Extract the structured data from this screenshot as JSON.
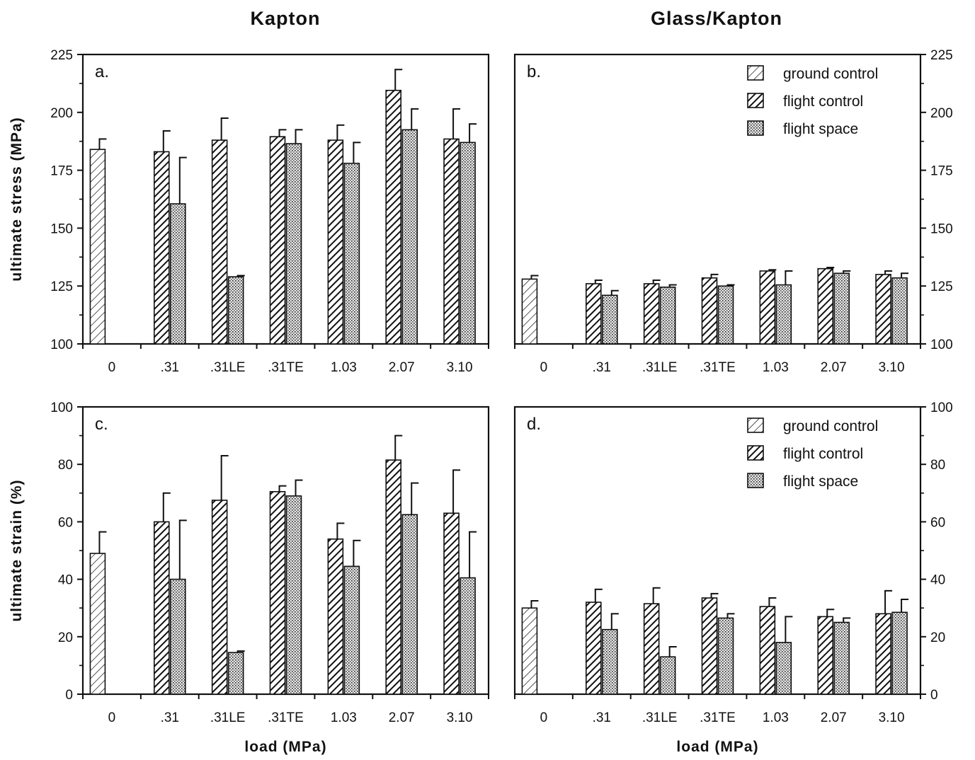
{
  "figure": {
    "col_titles": [
      "Kapton",
      "Glass/Kapton"
    ],
    "colors": {
      "ink": "#111111",
      "background": "#ffffff"
    },
    "patterns": {
      "ground control": "light-diagonal-hatch",
      "flight control": "dark-diagonal-hatch",
      "flight space": "stipple"
    }
  },
  "chart_data": [
    {
      "type": "bar",
      "panel": "a.",
      "column_title": "Kapton",
      "ylabel": "ultimate stress (MPa)",
      "xlabel": "",
      "ylim": [
        100,
        225
      ],
      "yticks": [
        100,
        125,
        150,
        175,
        200,
        225
      ],
      "y_axis_side": "left",
      "categories": [
        "0",
        ".31",
        ".31LE",
        ".31TE",
        "1.03",
        "2.07",
        "3.10"
      ],
      "legend": false,
      "series": [
        {
          "name": "ground control",
          "values": [
            184,
            null,
            null,
            null,
            null,
            null,
            null
          ],
          "errors": [
            4.5,
            null,
            null,
            null,
            null,
            null,
            null
          ]
        },
        {
          "name": "flight control",
          "values": [
            null,
            183,
            188,
            189.5,
            188,
            209.5,
            188.5
          ],
          "errors": [
            null,
            9,
            9.5,
            3,
            6.5,
            9,
            13
          ]
        },
        {
          "name": "flight space",
          "values": [
            null,
            160.5,
            129,
            186.5,
            178,
            192.5,
            187
          ],
          "errors": [
            null,
            20,
            0.5,
            6,
            9,
            9,
            8
          ]
        }
      ]
    },
    {
      "type": "bar",
      "panel": "b.",
      "column_title": "Glass/Kapton",
      "ylabel": "",
      "xlabel": "",
      "ylim": [
        100,
        225
      ],
      "yticks": [
        100,
        125,
        150,
        175,
        200,
        225
      ],
      "y_axis_side": "right",
      "categories": [
        "0",
        ".31",
        ".31LE",
        ".31TE",
        "1.03",
        "2.07",
        "3.10"
      ],
      "legend": true,
      "legend_position": "top-right",
      "series": [
        {
          "name": "ground control",
          "values": [
            128,
            null,
            null,
            null,
            null,
            null,
            null
          ],
          "errors": [
            1.5,
            null,
            null,
            null,
            null,
            null,
            null
          ]
        },
        {
          "name": "flight control",
          "values": [
            null,
            126,
            126,
            128.5,
            131.5,
            132.5,
            130
          ],
          "errors": [
            null,
            1.5,
            1.5,
            1.5,
            0.5,
            0.5,
            1.5
          ]
        },
        {
          "name": "flight space",
          "values": [
            null,
            121,
            124.5,
            125,
            125.5,
            130.5,
            128.5
          ],
          "errors": [
            null,
            2,
            1,
            0.5,
            6,
            1,
            2
          ]
        }
      ]
    },
    {
      "type": "bar",
      "panel": "c.",
      "column_title": "Kapton",
      "ylabel": "ultimate strain (%)",
      "xlabel": "load (MPa)",
      "ylim": [
        0,
        100
      ],
      "yticks": [
        0,
        20,
        40,
        60,
        80,
        100
      ],
      "y_axis_side": "left",
      "categories": [
        "0",
        ".31",
        ".31LE",
        ".31TE",
        "1.03",
        "2.07",
        "3.10"
      ],
      "legend": false,
      "series": [
        {
          "name": "ground control",
          "values": [
            49,
            null,
            null,
            null,
            null,
            null,
            null
          ],
          "errors": [
            7.5,
            null,
            null,
            null,
            null,
            null,
            null
          ]
        },
        {
          "name": "flight control",
          "values": [
            null,
            60,
            67.5,
            70.5,
            54,
            81.5,
            63
          ],
          "errors": [
            null,
            10,
            15.5,
            2,
            5.5,
            8.5,
            15
          ]
        },
        {
          "name": "flight space",
          "values": [
            null,
            40,
            14.5,
            69,
            44.5,
            62.5,
            40.5
          ],
          "errors": [
            null,
            20.5,
            0.5,
            5.5,
            9,
            11,
            16
          ]
        }
      ]
    },
    {
      "type": "bar",
      "panel": "d.",
      "column_title": "Glass/Kapton",
      "ylabel": "",
      "xlabel": "load (MPa)",
      "ylim": [
        0,
        100
      ],
      "yticks": [
        0,
        20,
        40,
        60,
        80,
        100
      ],
      "y_axis_side": "right",
      "categories": [
        "0",
        ".31",
        ".31LE",
        ".31TE",
        "1.03",
        "2.07",
        "3.10"
      ],
      "legend": true,
      "legend_position": "top-right",
      "series": [
        {
          "name": "ground control",
          "values": [
            30,
            null,
            null,
            null,
            null,
            null,
            null
          ],
          "errors": [
            2.5,
            null,
            null,
            null,
            null,
            null,
            null
          ]
        },
        {
          "name": "flight control",
          "values": [
            null,
            32,
            31.5,
            33.5,
            30.5,
            27,
            28
          ],
          "errors": [
            null,
            4.5,
            5.5,
            1.5,
            3,
            2.5,
            8
          ]
        },
        {
          "name": "flight space",
          "values": [
            null,
            22.5,
            13,
            26.5,
            18,
            25,
            28.5
          ],
          "errors": [
            null,
            5.5,
            3.5,
            1.5,
            9,
            1.5,
            4.5
          ]
        }
      ]
    }
  ]
}
